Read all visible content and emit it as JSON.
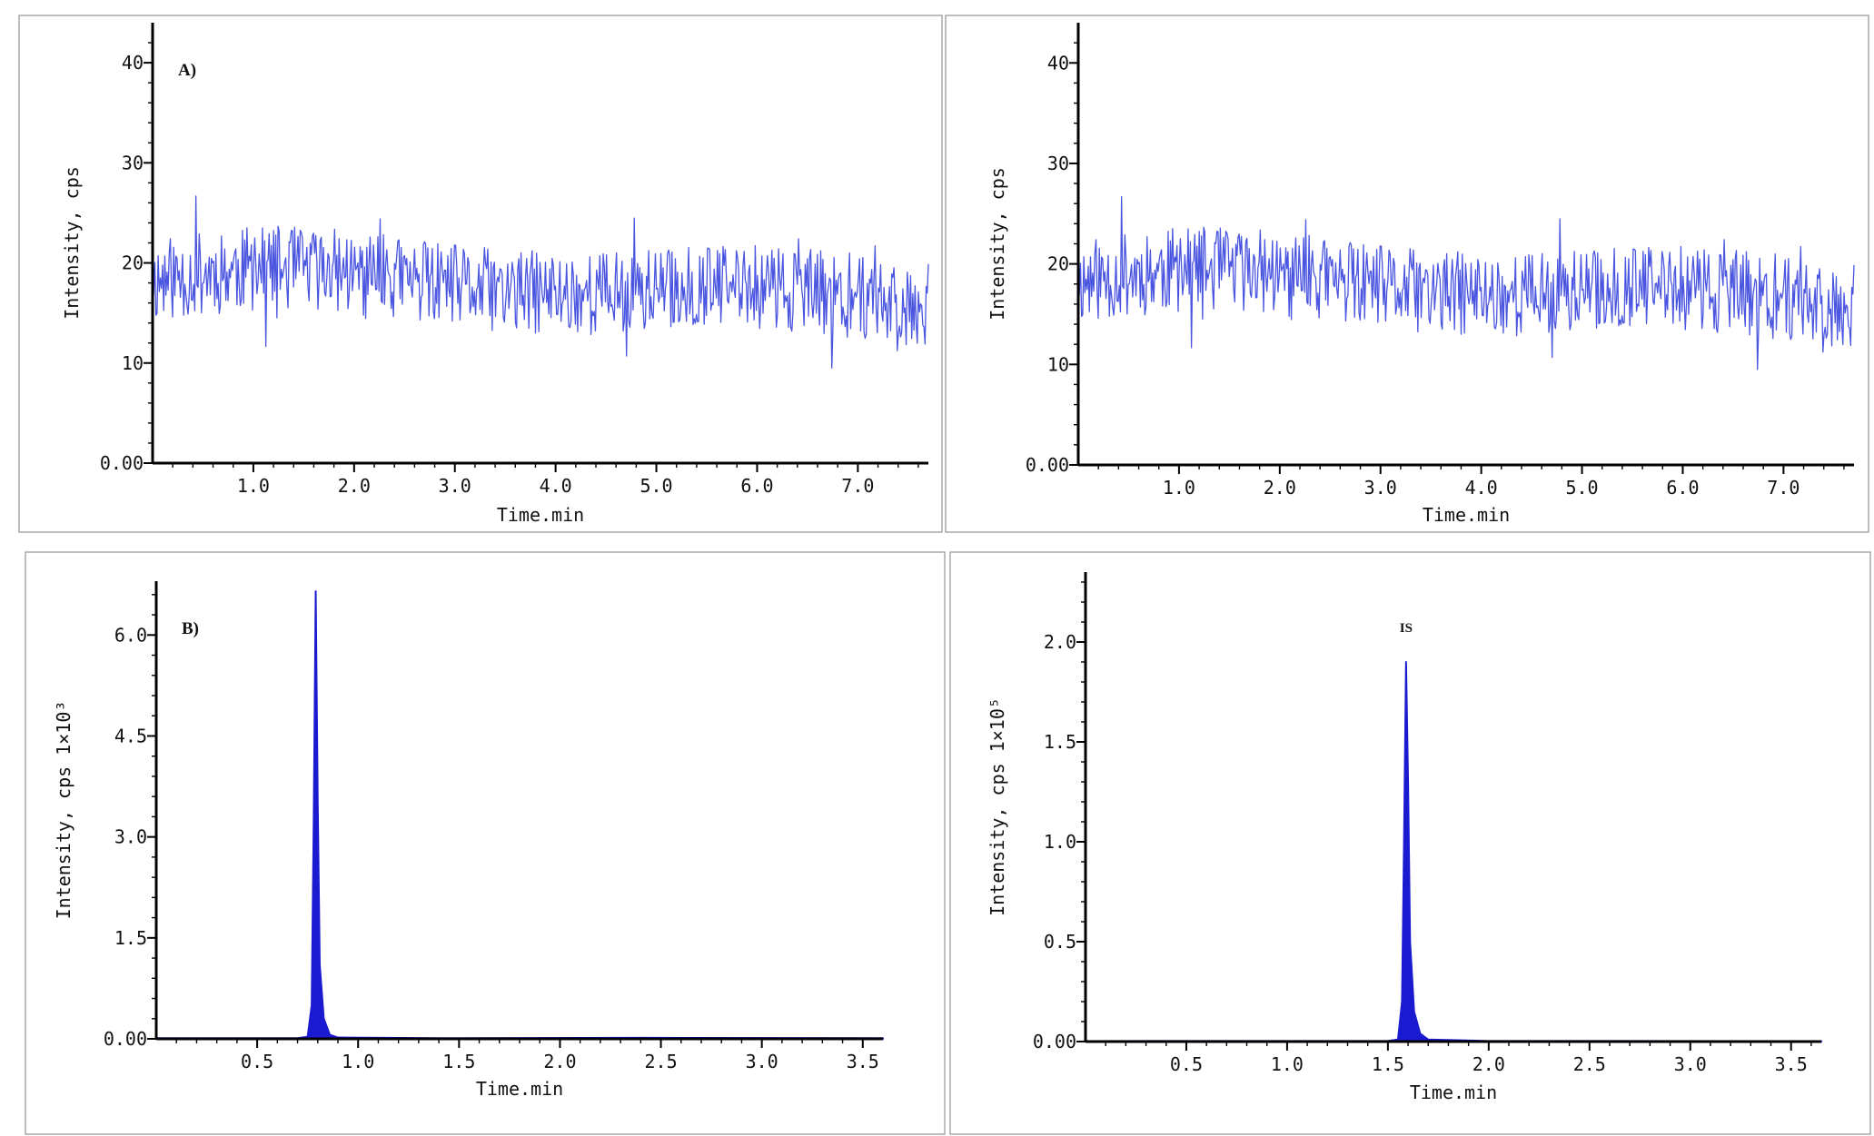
{
  "chart_data": [
    {
      "id": "panel-a-left",
      "type": "line",
      "panel_label": "A)",
      "xlabel": "Time.min",
      "ylabel": "Intensity, cps",
      "xlim": [
        0,
        7.7
      ],
      "ylim": [
        0,
        44
      ],
      "xticks": [
        1.0,
        2.0,
        3.0,
        4.0,
        5.0,
        6.0,
        7.0
      ],
      "xtick_labels": [
        "1.0",
        "2.0",
        "3.0",
        "4.0",
        "5.0",
        "6.0",
        "7.0"
      ],
      "yticks": [
        0,
        10,
        20,
        30,
        40
      ],
      "ytick_labels": [
        "0.00",
        "10",
        "20",
        "30",
        "40"
      ],
      "color": "#4a55e0",
      "fill": false,
      "noise": {
        "seed": 11,
        "n": 700,
        "mean": 17.5,
        "amp": 4.2,
        "min": 9.5,
        "max": 27
      },
      "annotations": []
    },
    {
      "id": "panel-a-right",
      "type": "line",
      "panel_label": "",
      "xlabel": "Time.min",
      "ylabel": "Intensity, cps",
      "xlim": [
        0,
        7.7
      ],
      "ylim": [
        0,
        44
      ],
      "xticks": [
        1.0,
        2.0,
        3.0,
        4.0,
        5.0,
        6.0,
        7.0
      ],
      "xtick_labels": [
        "1.0",
        "2.0",
        "3.0",
        "4.0",
        "5.0",
        "6.0",
        "7.0"
      ],
      "yticks": [
        0,
        10,
        20,
        30,
        40
      ],
      "ytick_labels": [
        "0.00",
        "10",
        "20",
        "30",
        "40"
      ],
      "color": "#4a55e0",
      "fill": false,
      "noise": {
        "seed": 11,
        "n": 700,
        "mean": 17.5,
        "amp": 4.2,
        "min": 9.5,
        "max": 27
      },
      "annotations": []
    },
    {
      "id": "panel-b-left",
      "type": "area",
      "panel_label": "B)",
      "xlabel": "Time.min",
      "ylabel": "Intensity, cps 1×10³",
      "xlim": [
        0,
        3.6
      ],
      "ylim": [
        0,
        6.8
      ],
      "xticks": [
        0.5,
        1.0,
        1.5,
        2.0,
        2.5,
        3.0,
        3.5
      ],
      "xtick_labels": [
        "0.5",
        "1.0",
        "1.5",
        "2.0",
        "2.5",
        "3.0",
        "3.5"
      ],
      "yticks": [
        0,
        1.5,
        3.0,
        4.5,
        6.0
      ],
      "ytick_labels": [
        "0.00",
        "1.5",
        "3.0",
        "4.5",
        "6.0"
      ],
      "color": "#1a1ad0",
      "fill": true,
      "points": [
        [
          0,
          0.01
        ],
        [
          0.4,
          0.01
        ],
        [
          0.7,
          0.01
        ],
        [
          0.75,
          0.03
        ],
        [
          0.77,
          0.5
        ],
        [
          0.78,
          3.2
        ],
        [
          0.79,
          6.65
        ],
        [
          0.8,
          3.5
        ],
        [
          0.81,
          1.1
        ],
        [
          0.83,
          0.3
        ],
        [
          0.86,
          0.06
        ],
        [
          0.9,
          0.02
        ],
        [
          1.4,
          0.01
        ],
        [
          2.4,
          0.015
        ],
        [
          3.6,
          0.01
        ]
      ],
      "annotations": []
    },
    {
      "id": "panel-b-right",
      "type": "area",
      "panel_label": "",
      "xlabel": "Time.min",
      "ylabel": "Intensity, cps 1×10⁵",
      "xlim": [
        0,
        3.65
      ],
      "ylim": [
        0,
        2.35
      ],
      "xticks": [
        0.5,
        1.0,
        1.5,
        2.0,
        2.5,
        3.0,
        3.5
      ],
      "xtick_labels": [
        "0.5",
        "1.0",
        "1.5",
        "2.0",
        "2.5",
        "3.0",
        "3.5"
      ],
      "yticks": [
        0,
        0.5,
        1.0,
        1.5,
        2.0
      ],
      "ytick_labels": [
        "0.00",
        "0.5",
        "1.0",
        "1.5",
        "2.0"
      ],
      "color": "#1a1ad0",
      "fill": true,
      "points": [
        [
          0,
          0.002
        ],
        [
          0.45,
          0.003
        ],
        [
          1.5,
          0.003
        ],
        [
          1.55,
          0.01
        ],
        [
          1.57,
          0.2
        ],
        [
          1.58,
          1.0
        ],
        [
          1.59,
          1.9
        ],
        [
          1.6,
          1.3
        ],
        [
          1.61,
          0.5
        ],
        [
          1.63,
          0.15
        ],
        [
          1.66,
          0.04
        ],
        [
          1.7,
          0.01
        ],
        [
          2.0,
          0.003
        ],
        [
          3.65,
          0.002
        ]
      ],
      "annotations": [
        {
          "text": "IS",
          "x": 1.59,
          "y": 2.05
        }
      ]
    }
  ]
}
